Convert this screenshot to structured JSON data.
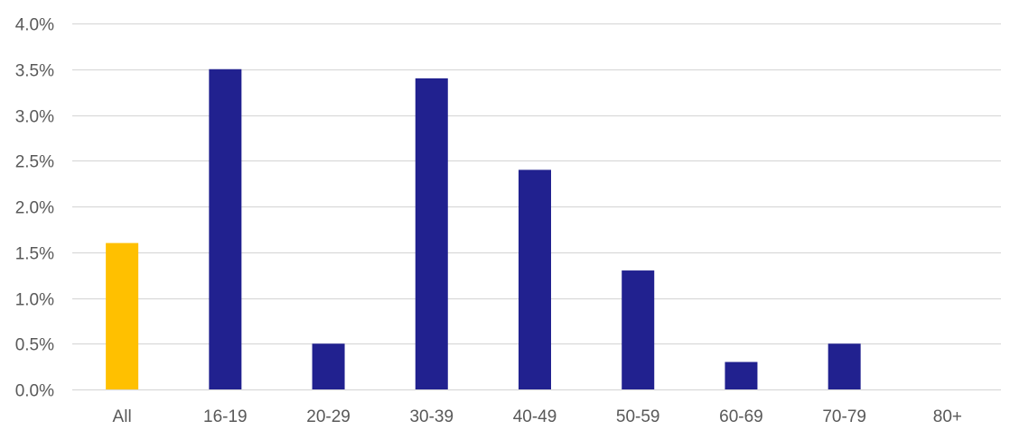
{
  "chart_data": {
    "type": "bar",
    "title": "",
    "xlabel": "",
    "ylabel": "",
    "categories": [
      "All",
      "16-19",
      "20-29",
      "30-39",
      "40-49",
      "50-59",
      "60-69",
      "70-79",
      "80+"
    ],
    "values": [
      1.6,
      3.5,
      0.5,
      3.4,
      2.4,
      1.3,
      0.3,
      0.5,
      0.0
    ],
    "value_unit": "%",
    "ylim": [
      0,
      4.0
    ],
    "yticks": [
      "0.0%",
      "0.5%",
      "1.0%",
      "1.5%",
      "2.0%",
      "2.5%",
      "3.0%",
      "3.5%",
      "4.0%"
    ],
    "ytick_values": [
      0,
      0.5,
      1.0,
      1.5,
      2.0,
      2.5,
      3.0,
      3.5,
      4.0
    ],
    "grid": true,
    "legend": "none",
    "colors": {
      "highlight": "#FFC000",
      "default": "#21218F",
      "grid": "#D9D9D9"
    },
    "highlight_categories": [
      "All"
    ]
  }
}
